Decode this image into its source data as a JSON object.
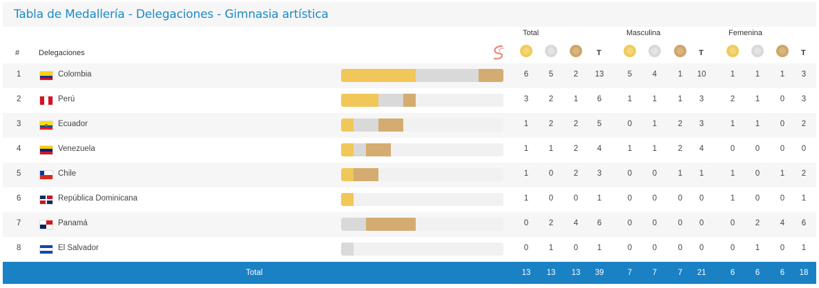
{
  "title": "Tabla de Medallería - Delegaciones - Gimnasia artística",
  "headers": {
    "rank": "#",
    "delegation": "Delegaciones",
    "groups": [
      "Total",
      "Masculina",
      "Femenina"
    ],
    "total_col": "T"
  },
  "colors": {
    "title": "#1a8ac7",
    "gold": "#f2c75a",
    "silver": "#d9d9d9",
    "bronze": "#d4ab70",
    "footer": "#1a81c4"
  },
  "rows": [
    {
      "rank": "1",
      "name": "Colombia",
      "flag": "colombia",
      "bar": {
        "gold": 6,
        "silver": 5,
        "bronze": 2
      },
      "total": [
        "6",
        "5",
        "2",
        "13"
      ],
      "masc": [
        "5",
        "4",
        "1",
        "10"
      ],
      "fem": [
        "1",
        "1",
        "1",
        "3"
      ]
    },
    {
      "rank": "2",
      "name": "Perú",
      "flag": "peru",
      "bar": {
        "gold": 3,
        "silver": 2,
        "bronze": 1
      },
      "total": [
        "3",
        "2",
        "1",
        "6"
      ],
      "masc": [
        "1",
        "1",
        "1",
        "3"
      ],
      "fem": [
        "2",
        "1",
        "0",
        "3"
      ]
    },
    {
      "rank": "3",
      "name": "Ecuador",
      "flag": "ecuador",
      "bar": {
        "gold": 1,
        "silver": 2,
        "bronze": 2
      },
      "total": [
        "1",
        "2",
        "2",
        "5"
      ],
      "masc": [
        "0",
        "1",
        "2",
        "3"
      ],
      "fem": [
        "1",
        "1",
        "0",
        "2"
      ]
    },
    {
      "rank": "4",
      "name": "Venezuela",
      "flag": "venezuela",
      "bar": {
        "gold": 1,
        "silver": 1,
        "bronze": 2
      },
      "total": [
        "1",
        "1",
        "2",
        "4"
      ],
      "masc": [
        "1",
        "1",
        "2",
        "4"
      ],
      "fem": [
        "0",
        "0",
        "0",
        "0"
      ]
    },
    {
      "rank": "5",
      "name": "Chile",
      "flag": "chile",
      "bar": {
        "gold": 1,
        "silver": 0,
        "bronze": 2
      },
      "total": [
        "1",
        "0",
        "2",
        "3"
      ],
      "masc": [
        "0",
        "0",
        "1",
        "1"
      ],
      "fem": [
        "1",
        "0",
        "1",
        "2"
      ]
    },
    {
      "rank": "6",
      "name": "República Dominicana",
      "flag": "dominicana",
      "bar": {
        "gold": 1,
        "silver": 0,
        "bronze": 0
      },
      "total": [
        "1",
        "0",
        "0",
        "1"
      ],
      "masc": [
        "0",
        "0",
        "0",
        "0"
      ],
      "fem": [
        "1",
        "0",
        "0",
        "1"
      ]
    },
    {
      "rank": "7",
      "name": "Panamá",
      "flag": "panama",
      "bar": {
        "gold": 0,
        "silver": 2,
        "bronze": 4
      },
      "total": [
        "0",
        "2",
        "4",
        "6"
      ],
      "masc": [
        "0",
        "0",
        "0",
        "0"
      ],
      "fem": [
        "0",
        "2",
        "4",
        "6"
      ]
    },
    {
      "rank": "8",
      "name": "El Salvador",
      "flag": "salvador",
      "bar": {
        "gold": 0,
        "silver": 1,
        "bronze": 0
      },
      "total": [
        "0",
        "1",
        "0",
        "1"
      ],
      "masc": [
        "0",
        "0",
        "0",
        "0"
      ],
      "fem": [
        "0",
        "1",
        "0",
        "1"
      ]
    }
  ],
  "footer": {
    "label": "Total",
    "total": [
      "13",
      "13",
      "13",
      "39"
    ],
    "masc": [
      "7",
      "7",
      "7",
      "21"
    ],
    "fem": [
      "6",
      "6",
      "6",
      "18"
    ]
  }
}
